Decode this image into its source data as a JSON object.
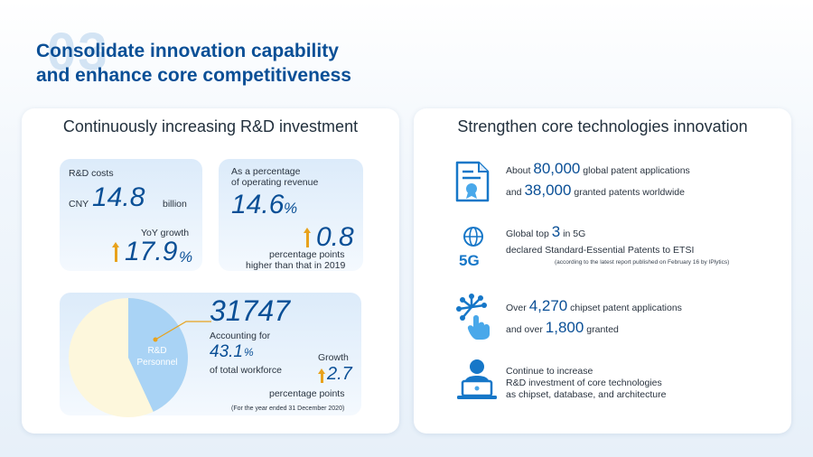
{
  "header": {
    "section_number": "03",
    "title_line1": "Consolidate innovation capability",
    "title_line2": "and enhance core competitiveness"
  },
  "left_card": {
    "title": "Continuously increasing R&D investment",
    "costs": {
      "label": "R&D costs",
      "currency": "CNY",
      "value": "14.8",
      "unit": "billion",
      "yoy_label": "YoY growth",
      "yoy_value": "17.9",
      "yoy_unit": "%"
    },
    "revenue_pct": {
      "label_line1": "As a percentage",
      "label_line2": "of operating revenue",
      "value": "14.6",
      "unit": "%",
      "increase_value": "0.8",
      "increase_line1": "percentage points",
      "increase_line2": "higher than that in 2019"
    },
    "personnel": {
      "pie_label_line1": "R&D",
      "pie_label_line2": "Personnel",
      "count": "31747",
      "accounting_label": "Accounting for",
      "share_value": "43.1",
      "share_unit": "%",
      "share_suffix": "of total workforce",
      "growth_label": "Growth",
      "growth_value": "2.7",
      "growth_unit": "percentage points",
      "footnote": "(For the year ended 31 December 2020)",
      "share_fraction": 0.431
    }
  },
  "right_card": {
    "title": "Strengthen core technologies innovation",
    "patents": {
      "prefix1": "About",
      "value1": "80,000",
      "suffix1": "global patent applications",
      "prefix2": "and",
      "value2": "38,000",
      "suffix2": "granted patents worldwide",
      "icon": "certificate-icon"
    },
    "sep": {
      "prefix": "Global top",
      "value": "3",
      "suffix": "in 5G",
      "line2": "declared Standard-Essential Patents to ETSI",
      "note": "(according to the latest report published on February 16 by IPlytics)",
      "icon_text": "5G",
      "icon": "globe-5g-icon"
    },
    "chipset": {
      "prefix1": "Over",
      "value1": "4,270",
      "suffix1": "chipset patent applications",
      "prefix2": "and over",
      "value2": "1,800",
      "suffix2": "granted",
      "icon": "chip-touch-icon"
    },
    "invest": {
      "line1": "Continue to increase",
      "line2": "R&D investment of core technologies",
      "line3": "as chipset, database, and architecture",
      "icon": "engineer-laptop-icon"
    }
  },
  "colors": {
    "brand_blue": "#0a4f96",
    "pie_blue": "#a9d3f5",
    "pie_cream": "#fdf7dc",
    "arrow": "#e8a21c"
  }
}
